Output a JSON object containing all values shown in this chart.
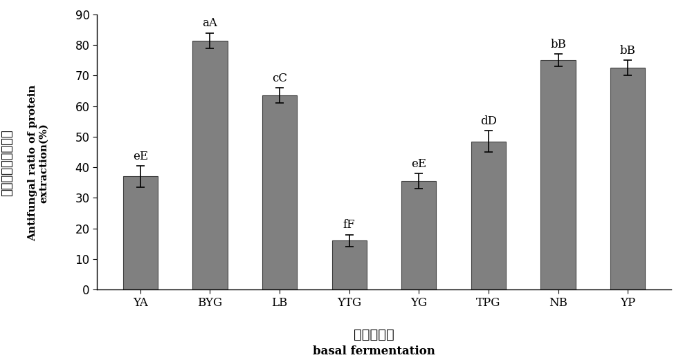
{
  "categories": [
    "YA",
    "BYG",
    "LB",
    "YTG",
    "YG",
    "TPG",
    "NB",
    "YP"
  ],
  "values": [
    37,
    81.5,
    63.5,
    16,
    35.5,
    48.5,
    75,
    72.5
  ],
  "errors": [
    3.5,
    2.5,
    2.5,
    2.0,
    2.5,
    3.5,
    2.0,
    2.5
  ],
  "labels": [
    "eE",
    "aA",
    "cC",
    "fF",
    "eE",
    "dD",
    "bB",
    "bB"
  ],
  "bar_color": "#808080",
  "bar_edgecolor": "#404040",
  "ylim": [
    0,
    90
  ],
  "yticks": [
    0,
    10,
    20,
    30,
    40,
    50,
    60,
    70,
    80,
    90
  ],
  "ylabel_chinese": "蛋白类提取物抑菌率",
  "ylabel_english_line1": "Antifungal ratio of protein",
  "ylabel_english_line2": "extraction(%)",
  "xlabel_chinese": "基础发酵液",
  "xlabel_english": "basal fermentation",
  "annotation_fontsize": 12,
  "tick_fontsize": 12,
  "ylabel_chinese_fontsize": 13,
  "ylabel_english_fontsize": 11,
  "xlabel_chinese_fontsize": 14,
  "xlabel_english_fontsize": 12,
  "background_color": "#ffffff",
  "bar_width": 0.5
}
